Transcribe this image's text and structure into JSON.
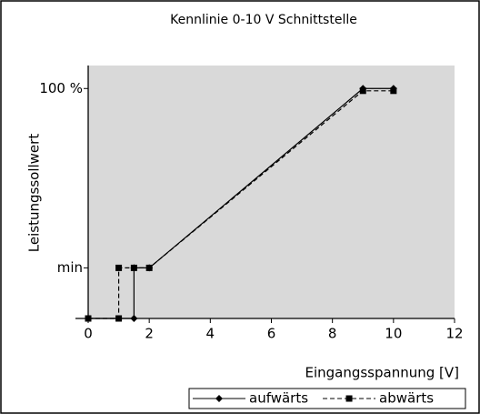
{
  "chart_data": {
    "type": "line",
    "title": "Kennlinie  0-10 V Schnittstelle",
    "x_label": "Eingangsspannung [V]",
    "y_label": "Leistungssollwert",
    "xlim": [
      0,
      12
    ],
    "xticks": [
      0,
      2,
      4,
      6,
      8,
      10,
      12
    ],
    "ylim": [
      0,
      110
    ],
    "yticks": [
      {
        "value": 22,
        "label": "min"
      },
      {
        "value": 100,
        "label": "100 %"
      }
    ],
    "plot_background": "#d9d9d9",
    "series": [
      {
        "name": "aufwärts",
        "color": "#000000",
        "dashed": false,
        "marker": "diamond",
        "x": [
          0,
          1.5,
          1.5,
          2,
          9,
          10
        ],
        "values": [
          0,
          0,
          22,
          22,
          100,
          100
        ]
      },
      {
        "name": "abwärts",
        "color": "#000000",
        "dashed": true,
        "marker": "square",
        "x": [
          0,
          1,
          1,
          1.5,
          2,
          9,
          10
        ],
        "values": [
          0,
          0,
          22,
          22,
          22,
          99,
          99
        ]
      }
    ]
  }
}
